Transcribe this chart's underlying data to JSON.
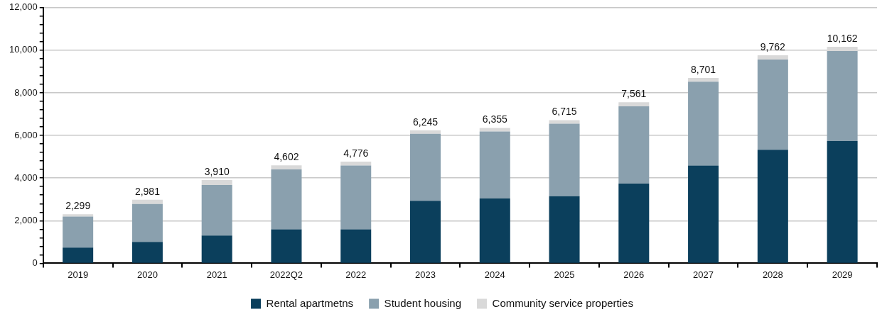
{
  "chart_data": {
    "type": "bar",
    "stacked": true,
    "categories": [
      "2019",
      "2020",
      "2021",
      "2022Q2",
      "2022",
      "2023",
      "2024",
      "2025",
      "2026",
      "2027",
      "2028",
      "2029"
    ],
    "series": [
      {
        "name": "Rental apartmetns",
        "color": "#0b3f5c",
        "values": [
          740,
          1000,
          1300,
          1590,
          1590,
          2930,
          3040,
          3150,
          3740,
          4590,
          5330,
          5740
        ]
      },
      {
        "name": "Student housing",
        "color": "#8aa0ae",
        "values": [
          1450,
          1780,
          2370,
          2820,
          2995,
          3145,
          3145,
          3405,
          3630,
          3930,
          4230,
          4220
        ]
      },
      {
        "name": "Community service properties",
        "color": "#d9d9d9",
        "values": [
          110,
          200,
          240,
          190,
          190,
          170,
          170,
          160,
          190,
          180,
          200,
          200
        ]
      }
    ],
    "totals": [
      "2,299",
      "2,981",
      "3,910",
      "4,602",
      "4,776",
      "6,245",
      "6,355",
      "6,715",
      "7,561",
      "8,701",
      "9,762",
      "10,162"
    ],
    "ylim": [
      0,
      12000
    ],
    "yticks": [
      0,
      {
        "value": 400,
        "label": null
      },
      {
        "value": 800,
        "label": null
      },
      {
        "value": 1200,
        "label": null
      },
      {
        "value": 1600,
        "label": null
      },
      "2,000",
      {
        "value": 2400,
        "label": null
      },
      {
        "value": 2800,
        "label": null
      },
      {
        "value": 3200,
        "label": null
      },
      {
        "value": 3600,
        "label": null
      },
      {
        "value": 4000,
        "label": "4,000"
      },
      {
        "value": 4400,
        "label": null
      },
      {
        "value": 4800,
        "label": null
      },
      {
        "value": 5200,
        "label": null
      },
      {
        "value": 5600,
        "label": null
      },
      {
        "value": 6000,
        "label": "6,000"
      },
      {
        "value": 6400,
        "label": null
      },
      {
        "value": 6800,
        "label": null
      },
      {
        "value": 7200,
        "label": null
      },
      {
        "value": 7600,
        "label": null
      },
      {
        "value": 8000,
        "label": "8,000"
      },
      {
        "value": 8400,
        "label": null
      },
      {
        "value": 8800,
        "label": null
      },
      {
        "value": 9200,
        "label": null
      },
      {
        "value": 9600,
        "label": null
      },
      {
        "value": 10000,
        "label": "10,000"
      },
      {
        "value": 10400,
        "label": null
      },
      {
        "value": 10800,
        "label": null
      },
      {
        "value": 11200,
        "label": null
      },
      {
        "value": 11600,
        "label": null
      },
      {
        "value": 12000,
        "label": "12,000"
      }
    ],
    "grid": "y",
    "legend": "bottom"
  }
}
